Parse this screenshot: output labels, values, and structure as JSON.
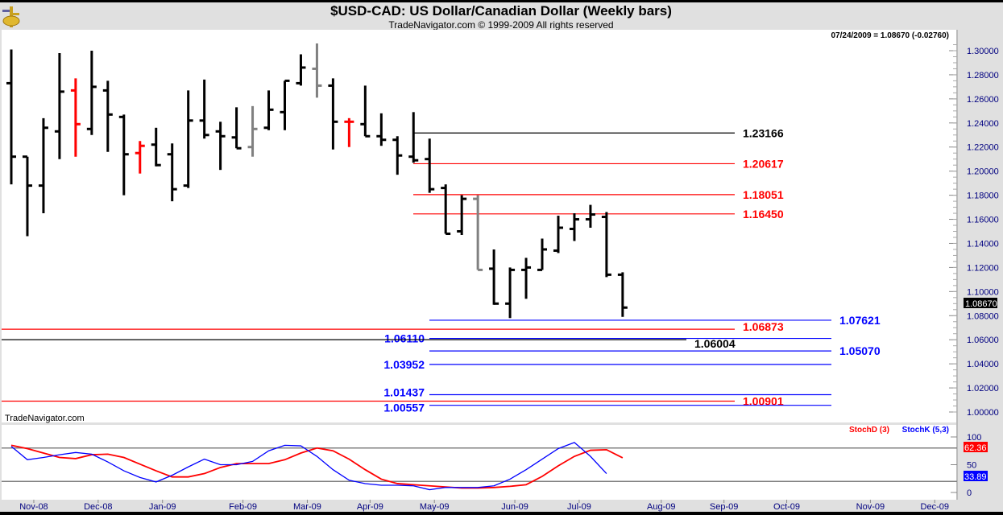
{
  "header": {
    "title": "$USD-CAD:  US Dollar/Canadian Dollar  (Weekly bars)",
    "subtitle": "TradeNavigator.com © 1999-2009 All rights reserved",
    "readout": "07/24/2009 = 1.08670 (-0.02760)",
    "watermark": "TradeNavigator.com"
  },
  "colors": {
    "up": "#000000",
    "red": "#ff0000",
    "gray": "#808080",
    "blue": "#0000ff",
    "black": "#000000"
  },
  "chart_data": [
    {
      "type": "ohlc",
      "title": "$USD-CAD:  US Dollar/Canadian Dollar  (Weekly bars)",
      "ylim": [
        1.0,
        1.3
      ],
      "yticks": [
        "1.30000",
        "1.28000",
        "1.26000",
        "1.24000",
        "1.22000",
        "1.20000",
        "1.18000",
        "1.16000",
        "1.14000",
        "1.12000",
        "1.10000",
        "1.08000",
        "1.06000",
        "1.04000",
        "1.02000",
        "1.00000"
      ],
      "last_price": "1.08670",
      "xticks": [
        {
          "label": "Nov-08",
          "week": 1.4
        },
        {
          "label": "Dec-08",
          "week": 5.4
        },
        {
          "label": "Jan-09",
          "week": 9.4
        },
        {
          "label": "Feb-09",
          "week": 14.4
        },
        {
          "label": "Mar-09",
          "week": 18.4
        },
        {
          "label": "Apr-09",
          "week": 22.3
        },
        {
          "label": "May-09",
          "week": 26.3
        },
        {
          "label": "Jun-09",
          "week": 31.3
        },
        {
          "label": "Jul-09",
          "week": 35.3
        },
        {
          "label": "Aug-09",
          "week": 40.4
        },
        {
          "label": "Sep-09",
          "week": 44.3
        },
        {
          "label": "Oct-09",
          "week": 48.2
        },
        {
          "label": "Nov-09",
          "week": 53.4
        },
        {
          "label": "Dec-09",
          "week": 57.4
        }
      ],
      "bars": [
        {
          "o": 1.273,
          "h": 1.301,
          "l": 1.189,
          "c": 1.212,
          "color": "up"
        },
        {
          "o": 1.212,
          "h": 1.212,
          "l": 1.146,
          "c": 1.188,
          "color": "up"
        },
        {
          "o": 1.188,
          "h": 1.244,
          "l": 1.165,
          "c": 1.236,
          "color": "up"
        },
        {
          "o": 1.233,
          "h": 1.298,
          "l": 1.21,
          "c": 1.266,
          "color": "up"
        },
        {
          "o": 1.267,
          "h": 1.277,
          "l": 1.212,
          "c": 1.239,
          "color": "red"
        },
        {
          "o": 1.235,
          "h": 1.3,
          "l": 1.23,
          "c": 1.27,
          "color": "up"
        },
        {
          "o": 1.267,
          "h": 1.275,
          "l": 1.216,
          "c": 1.247,
          "color": "up"
        },
        {
          "o": 1.245,
          "h": 1.247,
          "l": 1.18,
          "c": 1.214,
          "color": "up"
        },
        {
          "o": 1.215,
          "h": 1.225,
          "l": 1.198,
          "c": 1.221,
          "color": "red"
        },
        {
          "o": 1.222,
          "h": 1.236,
          "l": 1.204,
          "c": 1.205,
          "color": "up"
        },
        {
          "o": 1.214,
          "h": 1.223,
          "l": 1.175,
          "c": 1.185,
          "color": "up"
        },
        {
          "o": 1.188,
          "h": 1.267,
          "l": 1.186,
          "c": 1.242,
          "color": "up"
        },
        {
          "o": 1.242,
          "h": 1.276,
          "l": 1.227,
          "c": 1.23,
          "color": "up"
        },
        {
          "o": 1.233,
          "h": 1.241,
          "l": 1.201,
          "c": 1.229,
          "color": "up"
        },
        {
          "o": 1.228,
          "h": 1.253,
          "l": 1.219,
          "c": 1.219,
          "color": "up"
        },
        {
          "o": 1.22,
          "h": 1.254,
          "l": 1.212,
          "c": 1.235,
          "color": "gray"
        },
        {
          "o": 1.236,
          "h": 1.267,
          "l": 1.234,
          "c": 1.251,
          "color": "up"
        },
        {
          "o": 1.249,
          "h": 1.275,
          "l": 1.234,
          "c": 1.275,
          "color": "up"
        },
        {
          "o": 1.273,
          "h": 1.297,
          "l": 1.271,
          "c": 1.286,
          "color": "up"
        },
        {
          "o": 1.285,
          "h": 1.306,
          "l": 1.261,
          "c": 1.271,
          "color": "gray"
        },
        {
          "o": 1.271,
          "h": 1.277,
          "l": 1.218,
          "c": 1.241,
          "color": "up"
        },
        {
          "o": 1.241,
          "h": 1.244,
          "l": 1.22,
          "c": 1.241,
          "color": "red"
        },
        {
          "o": 1.239,
          "h": 1.271,
          "l": 1.229,
          "c": 1.229,
          "color": "up"
        },
        {
          "o": 1.229,
          "h": 1.248,
          "l": 1.221,
          "c": 1.226,
          "color": "up"
        },
        {
          "o": 1.226,
          "h": 1.229,
          "l": 1.197,
          "c": 1.213,
          "color": "up"
        },
        {
          "o": 1.212,
          "h": 1.249,
          "l": 1.207,
          "c": 1.209,
          "color": "up"
        },
        {
          "o": 1.21,
          "h": 1.227,
          "l": 1.182,
          "c": 1.185,
          "color": "up"
        },
        {
          "o": 1.186,
          "h": 1.189,
          "l": 1.148,
          "c": 1.148,
          "color": "up"
        },
        {
          "o": 1.15,
          "h": 1.18,
          "l": 1.147,
          "c": 1.177,
          "color": "up"
        },
        {
          "o": 1.177,
          "h": 1.18,
          "l": 1.118,
          "c": 1.118,
          "color": "gray"
        },
        {
          "o": 1.119,
          "h": 1.135,
          "l": 1.089,
          "c": 1.09,
          "color": "up"
        },
        {
          "o": 1.09,
          "h": 1.12,
          "l": 1.078,
          "c": 1.118,
          "color": "up"
        },
        {
          "o": 1.118,
          "h": 1.128,
          "l": 1.094,
          "c": 1.12,
          "color": "up"
        },
        {
          "o": 1.118,
          "h": 1.144,
          "l": 1.118,
          "c": 1.135,
          "color": "up"
        },
        {
          "o": 1.134,
          "h": 1.163,
          "l": 1.132,
          "c": 1.153,
          "color": "up"
        },
        {
          "o": 1.152,
          "h": 1.165,
          "l": 1.142,
          "c": 1.16,
          "color": "up"
        },
        {
          "o": 1.16,
          "h": 1.172,
          "l": 1.153,
          "c": 1.164,
          "color": "up"
        },
        {
          "o": 1.162,
          "h": 1.166,
          "l": 1.112,
          "c": 1.114,
          "color": "up"
        },
        {
          "o": 1.114,
          "h": 1.116,
          "l": 1.079,
          "c": 1.0867,
          "color": "up"
        }
      ],
      "levels": [
        {
          "value": 1.23166,
          "label": "1.23166",
          "color": "black",
          "kind": "upper",
          "label_pos": "right"
        },
        {
          "value": 1.20617,
          "label": "1.20617",
          "color": "red",
          "kind": "upper",
          "label_pos": "right"
        },
        {
          "value": 1.18051,
          "label": "1.18051",
          "color": "red",
          "kind": "upper",
          "label_pos": "right"
        },
        {
          "value": 1.1645,
          "label": "1.16450",
          "color": "red",
          "kind": "upper",
          "label_pos": "right"
        },
        {
          "value": 1.07621,
          "label": "1.07621",
          "color": "blue",
          "kind": "lower",
          "label_pos": "right"
        },
        {
          "value": 1.06873,
          "label": "1.06873",
          "color": "red",
          "kind": "extended",
          "label_pos": "right"
        },
        {
          "value": 1.0611,
          "label": "1.06110",
          "color": "blue",
          "kind": "lower",
          "label_pos": "left"
        },
        {
          "value": 1.06004,
          "label": "1.06004",
          "color": "black",
          "kind": "extended-short",
          "label_pos": "right"
        },
        {
          "value": 1.0507,
          "label": "1.05070",
          "color": "blue",
          "kind": "lower",
          "label_pos": "right"
        },
        {
          "value": 1.03952,
          "label": "1.03952",
          "color": "blue",
          "kind": "lower",
          "label_pos": "left"
        },
        {
          "value": 1.01437,
          "label": "1.01437",
          "color": "blue",
          "kind": "lower",
          "label_pos": "left"
        },
        {
          "value": 1.00901,
          "label": "1.00901",
          "color": "red",
          "kind": "extended",
          "label_pos": "right"
        },
        {
          "value": 1.00557,
          "label": "1.00557",
          "color": "blue",
          "kind": "lower",
          "label_pos": "left"
        }
      ]
    },
    {
      "type": "line",
      "ylim": [
        0,
        100
      ],
      "yticks": [
        "100",
        "50",
        "0"
      ],
      "bands": [
        80,
        20
      ],
      "series": [
        {
          "name": "StochD (3)",
          "color": "red",
          "last": "62.36",
          "values": [
            85,
            79,
            71,
            63,
            61,
            68,
            69,
            63,
            51,
            39,
            28,
            28,
            34,
            45,
            52,
            52,
            52,
            59,
            71,
            80,
            75,
            60,
            41,
            24,
            16,
            14,
            12,
            10,
            8,
            8,
            9,
            11,
            14,
            29,
            48,
            65,
            76,
            77,
            62.36
          ]
        },
        {
          "name": "StochK (5,3)",
          "color": "blue",
          "last": "33.89",
          "values": [
            83,
            59,
            63,
            68,
            72,
            69,
            55,
            39,
            27,
            19,
            31,
            46,
            60,
            50,
            50,
            56,
            75,
            85,
            84,
            65,
            41,
            22,
            16,
            13,
            13,
            12,
            5,
            9,
            9,
            9,
            12,
            24,
            41,
            60,
            79,
            90,
            65,
            33.89,
            null
          ]
        }
      ]
    }
  ]
}
